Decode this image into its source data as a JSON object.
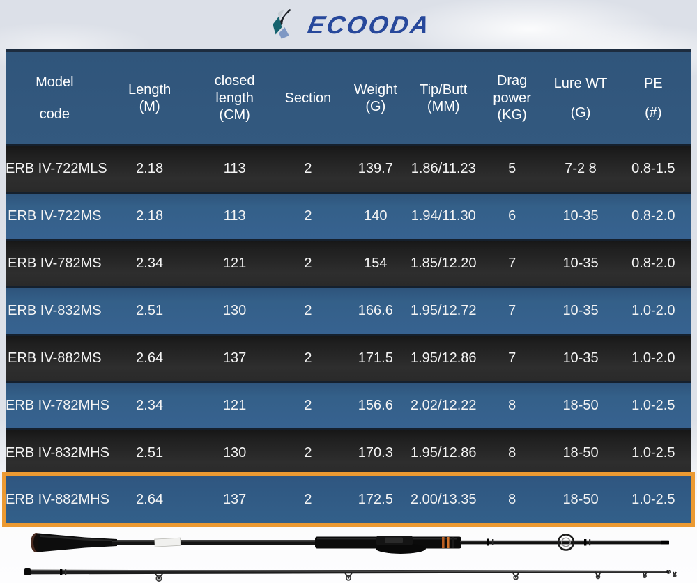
{
  "brand": {
    "name": "ECOODA",
    "logo_icon": "ecooda-logo-icon",
    "wordmark_color": "#27489b"
  },
  "colors": {
    "page_background": "#dde1e8",
    "header_background": "#31567c",
    "row_blue": "#35608a",
    "row_dark": "#262626",
    "highlight_border": "#ec9a32",
    "table_text": "#ffffff"
  },
  "table": {
    "columns": [
      {
        "id": "model",
        "label_lines": [
          "Model",
          "code"
        ]
      },
      {
        "id": "length",
        "label_lines": [
          "Length",
          "(M)"
        ]
      },
      {
        "id": "closed",
        "label_lines": [
          "closed",
          "length",
          "(CM)"
        ]
      },
      {
        "id": "section",
        "label_lines": [
          "Section"
        ]
      },
      {
        "id": "weight",
        "label_lines": [
          "Weight",
          "(G)"
        ]
      },
      {
        "id": "tipbutt",
        "label_lines": [
          "Tip/Butt",
          "(MM)"
        ]
      },
      {
        "id": "drag",
        "label_lines": [
          "Drag",
          "power",
          "(KG)"
        ]
      },
      {
        "id": "lure",
        "label_lines": [
          "Lure WT",
          "(G)"
        ]
      },
      {
        "id": "pe",
        "label_lines": [
          "PE",
          "(#)"
        ]
      }
    ],
    "rows": [
      {
        "style": "dark",
        "highlight": false,
        "cells": [
          "ERB IV-722MLS",
          "2.18",
          "113",
          "2",
          "139.7",
          "1.86/11.23",
          "5",
          "7-2 8",
          "0.8-1.5"
        ]
      },
      {
        "style": "blue",
        "highlight": false,
        "cells": [
          "ERB IV-722MS",
          "2.18",
          "113",
          "2",
          "140",
          "1.94/11.30",
          "6",
          "10-35",
          "0.8-2.0"
        ]
      },
      {
        "style": "dark",
        "highlight": false,
        "cells": [
          "ERB IV-782MS",
          "2.34",
          "121",
          "2",
          "154",
          "1.85/12.20",
          "7",
          "10-35",
          "0.8-2.0"
        ]
      },
      {
        "style": "blue",
        "highlight": false,
        "cells": [
          "ERB IV-832MS",
          "2.51",
          "130",
          "2",
          "166.6",
          "1.95/12.72",
          "7",
          "10-35",
          "1.0-2.0"
        ]
      },
      {
        "style": "dark",
        "highlight": false,
        "cells": [
          "ERB IV-882MS",
          "2.64",
          "137",
          "2",
          "171.5",
          "1.95/12.86",
          "7",
          "10-35",
          "1.0-2.0"
        ]
      },
      {
        "style": "blue",
        "highlight": false,
        "cells": [
          "ERB IV-782MHS",
          "2.34",
          "121",
          "2",
          "156.6",
          "2.02/12.22",
          "8",
          "18-50",
          "1.0-2.5"
        ]
      },
      {
        "style": "dark",
        "highlight": false,
        "cells": [
          "ERB IV-832MHS",
          "2.51",
          "130",
          "2",
          "170.3",
          "1.95/12.86",
          "8",
          "18-50",
          "1.0-2.5"
        ]
      },
      {
        "style": "blue",
        "highlight": true,
        "cells": [
          "ERB IV-882MHS",
          "2.64",
          "137",
          "2",
          "172.5",
          "2.00/13.35",
          "8",
          "18-50",
          "1.0-2.5"
        ]
      }
    ]
  },
  "images": {
    "rod_top": "rod-butt-section",
    "rod_bottom": "rod-tip-section"
  }
}
